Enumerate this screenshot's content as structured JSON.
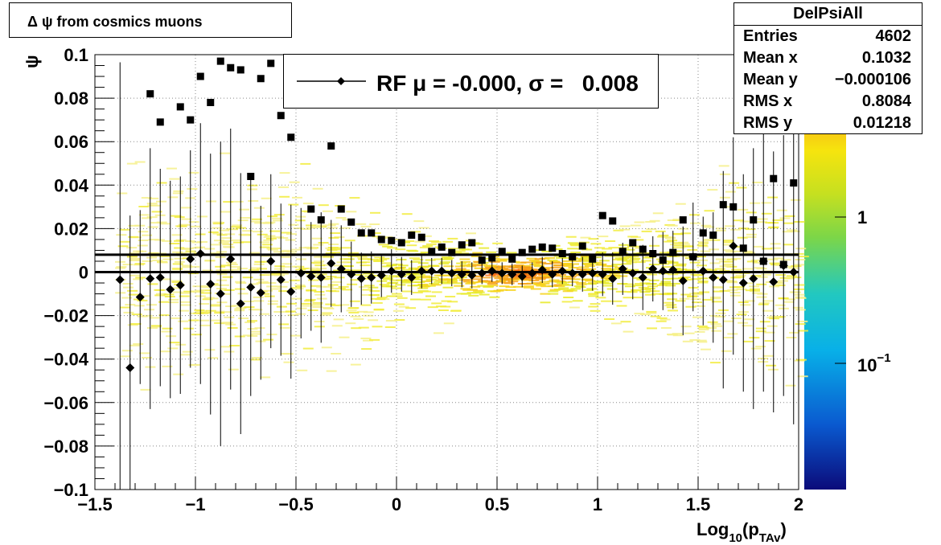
{
  "title": "Δ ψ from cosmics muons",
  "legend": {
    "label": "RF μ = -0.000, σ =   0.008"
  },
  "stats": {
    "name": "DelPsiAll",
    "rows": [
      {
        "key": "Entries",
        "value": "4602"
      },
      {
        "key": "Mean x",
        "value": "0.1032"
      },
      {
        "key": "Mean y",
        "value": "−0.000106"
      },
      {
        "key": "RMS x",
        "value": "0.8084"
      },
      {
        "key": "RMS y",
        "value": "0.01218"
      }
    ]
  },
  "colors": {
    "axis": "#000000",
    "grid": "#888888",
    "marker": "#000000"
  },
  "chart_data": {
    "type": "scatter",
    "xlabel": "Log10(pTAv)",
    "ylabel": "ψ",
    "xlim": [
      -1.5,
      2
    ],
    "ylim": [
      -0.1,
      0.1
    ],
    "xticks": [
      {
        "v": -1.5,
        "label": "−1.5"
      },
      {
        "v": -1,
        "label": "−1"
      },
      {
        "v": -0.5,
        "label": "−0.5"
      },
      {
        "v": 0,
        "label": "0"
      },
      {
        "v": 0.5,
        "label": "0.5"
      },
      {
        "v": 1,
        "label": "1"
      },
      {
        "v": 1.5,
        "label": "1.5"
      },
      {
        "v": 2,
        "label": "2"
      }
    ],
    "yticks": [
      {
        "v": 0.1,
        "label": "0.1"
      },
      {
        "v": 0.08,
        "label": "0.08"
      },
      {
        "v": 0.06,
        "label": "0.06"
      },
      {
        "v": 0.04,
        "label": "0.04"
      },
      {
        "v": 0.02,
        "label": "0.02"
      },
      {
        "v": 0,
        "label": "0"
      },
      {
        "v": -0.02,
        "label": "−0.02"
      },
      {
        "v": -0.04,
        "label": "−0.04"
      },
      {
        "v": -0.06,
        "label": "−0.06"
      },
      {
        "v": -0.08,
        "label": "−0.08"
      },
      {
        "v": -0.1,
        "label": "−0.1"
      }
    ],
    "grid": true,
    "log_z": true,
    "colorbar": {
      "ticks": [
        {
          "v": 1,
          "label": "1"
        },
        {
          "v": 0.1,
          "label": "10",
          "sup": "−1"
        }
      ],
      "palette": [
        "#0b1f6e",
        "#0a64c8",
        "#08b4e0",
        "#2ec8b0",
        "#a6dc32",
        "#f4e60c",
        "#f7a21a",
        "#f2480a"
      ]
    },
    "series": [
      {
        "marker": "diamond",
        "points": [
          [
            -1.375,
            -0.0035,
            0.1
          ],
          [
            -1.325,
            -0.044,
            0.07
          ],
          [
            -1.275,
            -0.0115,
            0.04
          ],
          [
            -1.225,
            -0.003,
            0.06
          ],
          [
            -1.175,
            -0.0025,
            0.05
          ],
          [
            -1.125,
            -0.008,
            0.05
          ],
          [
            -1.075,
            -0.006,
            0.05
          ],
          [
            -1.025,
            0.006,
            0.05
          ],
          [
            -0.975,
            0.0085,
            0.06
          ],
          [
            -0.925,
            -0.0055,
            0.06
          ],
          [
            -0.875,
            -0.01,
            0.07
          ],
          [
            -0.825,
            0.006,
            0.06
          ],
          [
            -0.775,
            -0.0145,
            0.06
          ],
          [
            -0.725,
            -0.007,
            0.05
          ],
          [
            -0.675,
            -0.0095,
            0.04
          ],
          [
            -0.625,
            0.005,
            0.04
          ],
          [
            -0.575,
            -0.0035,
            0.035
          ],
          [
            -0.525,
            -0.009,
            0.04
          ],
          [
            -0.475,
            -0.0005,
            0.03
          ],
          [
            -0.425,
            -0.002,
            0.025
          ],
          [
            -0.375,
            -0.0025,
            0.03
          ],
          [
            -0.325,
            0.004,
            0.02
          ],
          [
            -0.275,
            0.0015,
            0.02
          ],
          [
            -0.225,
            -0.001,
            0.015
          ],
          [
            -0.175,
            -0.003,
            0.012
          ],
          [
            -0.125,
            -0.0025,
            0.012
          ],
          [
            -0.075,
            -0.0015,
            0.01
          ],
          [
            -0.025,
            0.0005,
            0.01
          ],
          [
            0.025,
            -0.001,
            0.008
          ],
          [
            0.075,
            -0.0025,
            0.008
          ],
          [
            0.125,
            0.0005,
            0.008
          ],
          [
            0.175,
            0.0005,
            0.006
          ],
          [
            0.225,
            0.0005,
            0.006
          ],
          [
            0.275,
            -0.0005,
            0.006
          ],
          [
            0.325,
            -0.001,
            0.006
          ],
          [
            0.375,
            -0.0015,
            0.006
          ],
          [
            0.425,
            -0.0005,
            0.005
          ],
          [
            0.475,
            0.0005,
            0.005
          ],
          [
            0.525,
            -0.0005,
            0.005
          ],
          [
            0.575,
            -0.001,
            0.005
          ],
          [
            0.625,
            -0.002,
            0.005
          ],
          [
            0.675,
            -0.0005,
            0.005
          ],
          [
            0.725,
            0.001,
            0.006
          ],
          [
            0.775,
            -0.001,
            0.006
          ],
          [
            0.825,
            0.0005,
            0.006
          ],
          [
            0.875,
            -0.0005,
            0.006
          ],
          [
            0.925,
            -0.001,
            0.008
          ],
          [
            0.975,
            -0.0005,
            0.008
          ],
          [
            1.025,
            -0.001,
            0.01
          ],
          [
            1.075,
            -0.003,
            0.012
          ],
          [
            1.125,
            0.0015,
            0.012
          ],
          [
            1.175,
            -0.0005,
            0.012
          ],
          [
            1.225,
            -0.0025,
            0.015
          ],
          [
            1.275,
            0.0015,
            0.015
          ],
          [
            1.325,
            0.0005,
            0.018
          ],
          [
            1.375,
            0.001,
            0.018
          ],
          [
            1.425,
            -0.004,
            0.025
          ],
          [
            1.475,
            0.007,
            0.025
          ],
          [
            1.525,
            0.0005,
            0.025
          ],
          [
            1.575,
            -0.0025,
            0.03
          ],
          [
            1.625,
            -0.0035,
            0.05
          ],
          [
            1.675,
            0.012,
            0.05
          ],
          [
            1.725,
            -0.005,
            0.05
          ],
          [
            1.775,
            -0.003,
            0.06
          ],
          [
            1.825,
            0.005,
            0.06
          ],
          [
            1.875,
            -0.0045,
            0.06
          ],
          [
            1.925,
            0.003,
            0.06
          ],
          [
            1.975,
            0.0,
            0.07
          ]
        ]
      },
      {
        "marker": "square",
        "points": [
          [
            -1.225,
            0.082
          ],
          [
            -1.175,
            0.069
          ],
          [
            -1.075,
            0.076
          ],
          [
            -1.025,
            0.07
          ],
          [
            -0.975,
            0.09
          ],
          [
            -0.925,
            0.078
          ],
          [
            -0.875,
            0.097
          ],
          [
            -0.825,
            0.094
          ],
          [
            -0.775,
            0.093
          ],
          [
            -0.725,
            0.044
          ],
          [
            -0.675,
            0.089
          ],
          [
            -0.625,
            0.096
          ],
          [
            -0.575,
            0.072
          ],
          [
            -0.525,
            0.062
          ],
          [
            -0.425,
            0.029
          ],
          [
            -0.375,
            0.024
          ],
          [
            -0.325,
            0.058
          ],
          [
            -0.275,
            0.029
          ],
          [
            -0.225,
            0.023
          ],
          [
            -0.175,
            0.018
          ],
          [
            -0.125,
            0.018
          ],
          [
            -0.075,
            0.015
          ],
          [
            -0.025,
            0.0145
          ],
          [
            0.025,
            0.0135
          ],
          [
            0.075,
            0.017
          ],
          [
            0.125,
            0.016
          ],
          [
            0.175,
            0.0095
          ],
          [
            0.225,
            0.0115
          ],
          [
            0.275,
            0.009
          ],
          [
            0.325,
            0.0125
          ],
          [
            0.375,
            0.0135
          ],
          [
            0.425,
            0.0055
          ],
          [
            0.475,
            0.0065
          ],
          [
            0.525,
            0.0095
          ],
          [
            0.575,
            0.006
          ],
          [
            0.625,
            0.009
          ],
          [
            0.675,
            0.0105
          ],
          [
            0.725,
            0.0115
          ],
          [
            0.775,
            0.011
          ],
          [
            0.825,
            0.0085
          ],
          [
            0.875,
            0.007
          ],
          [
            0.925,
            0.012
          ],
          [
            0.975,
            0.006
          ],
          [
            1.025,
            0.026
          ],
          [
            1.075,
            0.0235
          ],
          [
            1.125,
            0.0095
          ],
          [
            1.175,
            0.0135
          ],
          [
            1.225,
            0.0105
          ],
          [
            1.275,
            0.0085
          ],
          [
            1.325,
            0.0055
          ],
          [
            1.375,
            0.009
          ],
          [
            1.425,
            0.024
          ],
          [
            1.475,
            0.007
          ],
          [
            1.525,
            0.018
          ],
          [
            1.575,
            0.017
          ],
          [
            1.625,
            0.031
          ],
          [
            1.675,
            0.03
          ],
          [
            1.725,
            0.011
          ],
          [
            1.775,
            0.024
          ],
          [
            1.825,
            0.005
          ],
          [
            1.875,
            0.043
          ],
          [
            1.925,
            0.0035
          ],
          [
            1.975,
            0.041
          ]
        ]
      }
    ],
    "reference_lines": [
      0.0,
      0.008
    ]
  }
}
